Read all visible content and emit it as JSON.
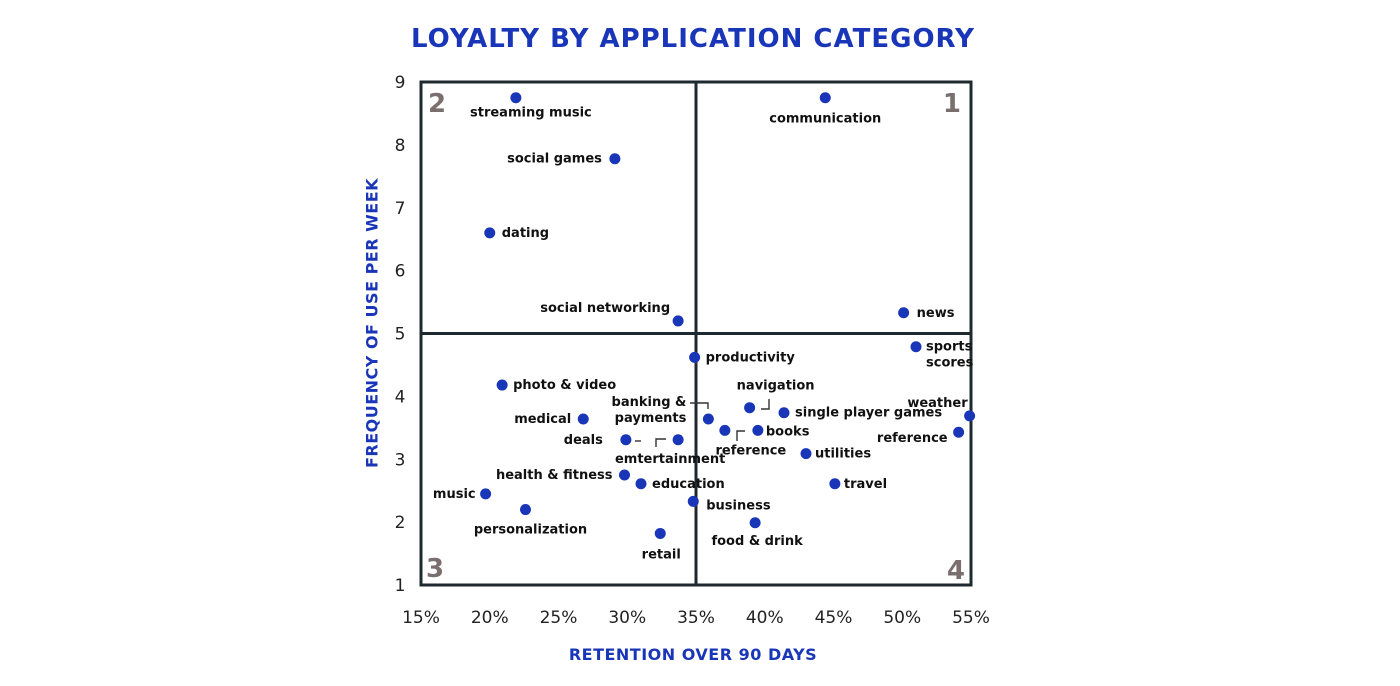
{
  "chart_data": {
    "type": "scatter",
    "title": "LOYALTY BY APPLICATION CATEGORY",
    "xlabel": "RETENTION OVER 90 DAYS",
    "ylabel": "FREQUENCY OF USE PER WEEK",
    "xlim": [
      15,
      55
    ],
    "ylim": [
      1,
      9
    ],
    "x_ticks": [
      "15%",
      "20%",
      "25%",
      "30%",
      "35%",
      "40%",
      "45%",
      "50%",
      "55%"
    ],
    "y_ticks": [
      "1",
      "2",
      "3",
      "4",
      "5",
      "6",
      "7",
      "8",
      "9"
    ],
    "quadrant_dividers": {
      "x": 35,
      "y": 5
    },
    "quadrant_labels": [
      {
        "label": "1",
        "position": "top-right"
      },
      {
        "label": "2",
        "position": "top-left"
      },
      {
        "label": "3",
        "position": "bottom-left"
      },
      {
        "label": "4",
        "position": "bottom-right"
      }
    ],
    "grid": false,
    "marker_color": "#1a36b8",
    "points": [
      {
        "label": "streaming music",
        "x": 21.9,
        "y": 8.75
      },
      {
        "label": "social games",
        "x": 29.1,
        "y": 7.78
      },
      {
        "label": "dating",
        "x": 20.0,
        "y": 6.6
      },
      {
        "label": "social networking",
        "x": 33.7,
        "y": 5.2
      },
      {
        "label": "communication",
        "x": 44.4,
        "y": 8.75
      },
      {
        "label": "news",
        "x": 50.1,
        "y": 5.33
      },
      {
        "label": "productivity",
        "x": 34.9,
        "y": 4.62
      },
      {
        "label": "sports scores",
        "x": 51.0,
        "y": 4.79
      },
      {
        "label": "photo & video",
        "x": 20.9,
        "y": 4.18
      },
      {
        "label": "medical",
        "x": 26.8,
        "y": 3.64
      },
      {
        "label": "deals",
        "x": 29.9,
        "y": 3.31
      },
      {
        "label": "emtertainment",
        "x": 33.7,
        "y": 3.31
      },
      {
        "label": "banking & payments",
        "x": 35.9,
        "y": 3.64
      },
      {
        "label": "reference",
        "x": 37.1,
        "y": 3.46
      },
      {
        "label": "navigation",
        "x": 38.9,
        "y": 3.82
      },
      {
        "label": "single player games",
        "x": 41.4,
        "y": 3.74
      },
      {
        "label": "books",
        "x": 39.5,
        "y": 3.46
      },
      {
        "label": "weather",
        "x": 54.9,
        "y": 3.69
      },
      {
        "label": "reference",
        "x": 54.1,
        "y": 3.43
      },
      {
        "label": "utilities",
        "x": 43.0,
        "y": 3.09
      },
      {
        "label": "health & fitness",
        "x": 29.8,
        "y": 2.75
      },
      {
        "label": "education",
        "x": 31.0,
        "y": 2.61
      },
      {
        "label": "music",
        "x": 19.7,
        "y": 2.45
      },
      {
        "label": "personalization",
        "x": 22.6,
        "y": 2.2
      },
      {
        "label": "business",
        "x": 34.8,
        "y": 2.33
      },
      {
        "label": "travel",
        "x": 45.1,
        "y": 2.61
      },
      {
        "label": "food & drink",
        "x": 39.3,
        "y": 1.99
      },
      {
        "label": "retail",
        "x": 32.4,
        "y": 1.82
      }
    ]
  }
}
